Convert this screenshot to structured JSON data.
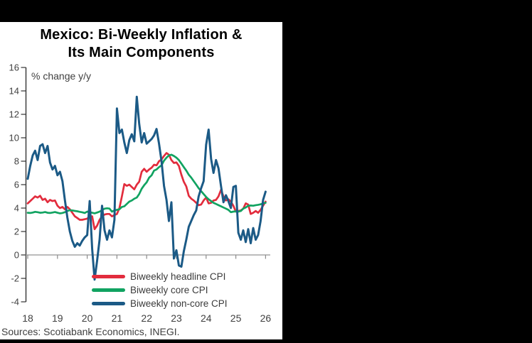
{
  "window": {
    "background": "#000000"
  },
  "panel": {
    "background": "#ffffff"
  },
  "chart": {
    "title_line1": "Mexico: Bi-Weekly Inflation &",
    "title_line2": "Its Main Components",
    "unit_label": "% change y/y"
  },
  "footer": {
    "sources": "Sources: Scotiabank Economics, INEGI."
  },
  "chart_data": {
    "type": "line",
    "title": "Mexico: Bi-Weekly Inflation & Its Main Components",
    "ylabel": "% change y/y",
    "xlabel": "",
    "x_start_year": 2018,
    "x_step_years": 0.0833333,
    "x_tick_years": [
      2018,
      2019,
      2020,
      2021,
      2022,
      2023,
      2024,
      2025,
      2026
    ],
    "x_tick_labels": [
      "18",
      "19",
      "20",
      "21",
      "22",
      "23",
      "24",
      "25",
      "26"
    ],
    "y_ticks": [
      16,
      14,
      12,
      10,
      8,
      6,
      4,
      2,
      0,
      -2,
      -4
    ],
    "ylim": [
      -4,
      16
    ],
    "xlim_years": [
      2018,
      2026.15
    ],
    "grid": "zero-line-only",
    "legend_position": "inside-bottom",
    "zero_line_color": "#a6a6a6",
    "year_tick_color": "#8c8c8c",
    "axis_color": "#333333",
    "label_color": "#404040",
    "series": [
      {
        "name": "Biweekly headline CPI",
        "color": "#e22c3d",
        "stroke_width": 2.7,
        "values": [
          4.4,
          4.6,
          4.8,
          5.0,
          4.9,
          5.05,
          4.7,
          4.8,
          4.5,
          4.7,
          4.6,
          4.65,
          4.2,
          4.0,
          4.1,
          3.9,
          4.1,
          3.9,
          3.6,
          3.3,
          3.15,
          3.0,
          3.0,
          3.05,
          3.1,
          3.3,
          3.3,
          2.2,
          2.5,
          3.0,
          3.3,
          3.45,
          3.5,
          3.5,
          3.3,
          3.4,
          3.5,
          4.0,
          5.0,
          6.05,
          5.9,
          6.0,
          5.8,
          5.6,
          6.0,
          6.25,
          7.1,
          7.35,
          7.1,
          7.3,
          7.45,
          7.7,
          7.65,
          8.0,
          8.15,
          8.45,
          8.7,
          8.55,
          8.1,
          7.85,
          7.9,
          7.6,
          6.85,
          6.25,
          5.85,
          5.05,
          4.8,
          4.65,
          4.45,
          4.25,
          4.3,
          4.65,
          4.9,
          4.4,
          4.45,
          4.65,
          4.7,
          5.0,
          5.55,
          5.0,
          4.65,
          4.75,
          4.55,
          4.2,
          3.7,
          3.75,
          3.8,
          3.95,
          4.4,
          4.3,
          3.5,
          3.6,
          3.75,
          3.6,
          3.85,
          4.2,
          4.55
        ]
      },
      {
        "name": "Biweekly core CPI",
        "color": "#11a361",
        "stroke_width": 2.7,
        "values": [
          3.6,
          3.58,
          3.62,
          3.68,
          3.65,
          3.6,
          3.62,
          3.66,
          3.6,
          3.58,
          3.62,
          3.66,
          3.6,
          3.55,
          3.58,
          3.65,
          3.75,
          3.82,
          3.8,
          3.76,
          3.73,
          3.68,
          3.64,
          3.58,
          3.7,
          3.65,
          3.6,
          3.55,
          3.62,
          3.7,
          3.82,
          3.95,
          3.98,
          3.96,
          3.7,
          3.8,
          3.85,
          3.9,
          4.1,
          4.15,
          4.35,
          4.55,
          4.65,
          4.8,
          4.9,
          5.2,
          5.65,
          5.95,
          6.2,
          6.6,
          6.8,
          7.2,
          7.3,
          7.5,
          7.65,
          8.05,
          8.3,
          8.5,
          8.55,
          8.45,
          8.3,
          8.1,
          7.8,
          7.5,
          7.2,
          6.85,
          6.6,
          6.3,
          6.0,
          5.7,
          5.45,
          5.2,
          4.95,
          4.75,
          4.6,
          4.45,
          4.35,
          4.25,
          4.15,
          4.05,
          3.95,
          3.85,
          3.65,
          3.7,
          3.72,
          3.7,
          3.75,
          3.95,
          4.05,
          4.2,
          4.22,
          4.2,
          4.25,
          4.28,
          4.32,
          4.4,
          4.45
        ]
      },
      {
        "name": "Biweekly non-core CPI",
        "color": "#1b5a86",
        "stroke_width": 3.0,
        "values": [
          6.5,
          7.6,
          8.5,
          8.9,
          8.1,
          9.3,
          9.45,
          8.7,
          9.3,
          7.9,
          7.3,
          7.6,
          6.8,
          7.1,
          6.3,
          4.7,
          3.2,
          2.0,
          1.2,
          0.7,
          1.0,
          0.8,
          1.2,
          1.5,
          1.7,
          4.6,
          0.5,
          -2.1,
          -0.5,
          1.3,
          4.2,
          2.1,
          1.3,
          2.1,
          1.5,
          3.0,
          12.5,
          10.4,
          10.7,
          9.6,
          8.7,
          9.8,
          10.3,
          9.7,
          13.5,
          11.2,
          9.6,
          10.4,
          9.5,
          9.7,
          9.9,
          10.2,
          10.75,
          9.5,
          8.0,
          5.9,
          4.7,
          2.9,
          4.5,
          -0.3,
          0.4,
          -0.9,
          -1.0,
          0.3,
          1.3,
          2.4,
          2.9,
          3.4,
          3.8,
          5.0,
          5.7,
          6.3,
          9.4,
          10.7,
          8.2,
          7.0,
          8.1,
          7.4,
          5.9,
          4.5,
          5.1,
          4.6,
          4.0,
          5.8,
          5.9,
          1.9,
          1.3,
          2.1,
          1.1,
          2.2,
          1.0,
          2.3,
          1.3,
          1.7,
          2.9,
          4.7,
          5.4
        ]
      }
    ]
  }
}
